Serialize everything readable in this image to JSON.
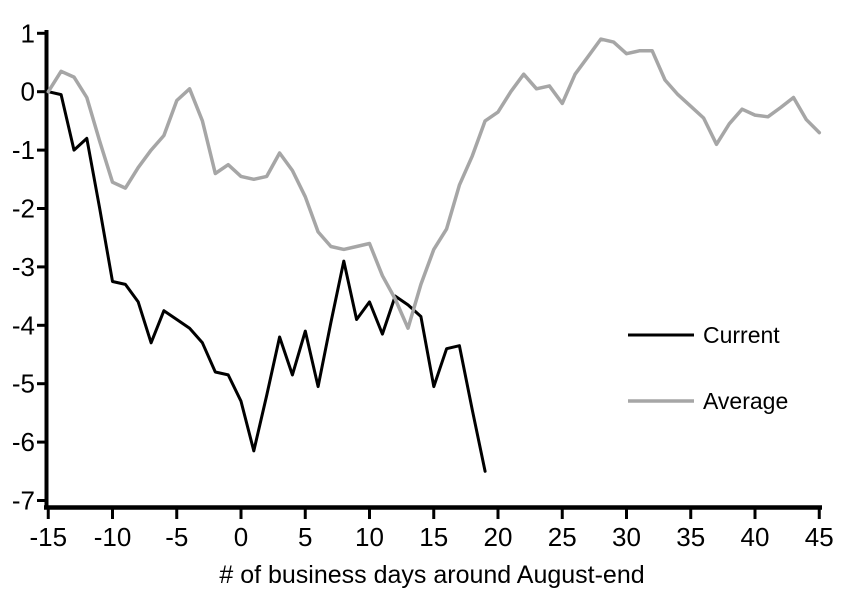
{
  "chart_data": {
    "type": "line",
    "title": "",
    "xlabel": "# of business days around August-end",
    "ylabel": "",
    "xlim": [
      -15,
      45
    ],
    "ylim": [
      -7,
      1
    ],
    "x_ticks": [
      -15,
      -10,
      -5,
      0,
      5,
      10,
      15,
      20,
      25,
      30,
      35,
      40,
      45
    ],
    "y_ticks": [
      1,
      0,
      -1,
      -2,
      -3,
      -4,
      -5,
      -6,
      -7
    ],
    "grid": false,
    "legend_position": "right-middle",
    "axis_color": "#000000",
    "series": [
      {
        "name": "Current",
        "color": "#000000",
        "stroke_width": 3,
        "x": [
          -15,
          -14,
          -13,
          -12,
          -11,
          -10,
          -9,
          -8,
          -7,
          -6,
          -5,
          -4,
          -3,
          -2,
          -1,
          0,
          1,
          2,
          3,
          4,
          5,
          6,
          7,
          8,
          9,
          10,
          11,
          12,
          13,
          14,
          15,
          16,
          17,
          18,
          19
        ],
        "values": [
          0,
          -0.05,
          -1.0,
          -0.8,
          -2.0,
          -3.25,
          -3.3,
          -3.6,
          -4.3,
          -3.75,
          -3.9,
          -4.05,
          -4.3,
          -4.8,
          -4.85,
          -5.3,
          -6.15,
          -5.2,
          -4.2,
          -4.85,
          -4.1,
          -5.05,
          -3.95,
          -2.9,
          -3.9,
          -3.6,
          -4.15,
          -3.5,
          -3.65,
          -3.85,
          -5.05,
          -4.4,
          -4.35,
          -5.45,
          -6.5
        ]
      },
      {
        "name": "Average",
        "color": "#a6a6a6",
        "stroke_width": 3.5,
        "x": [
          -15,
          -14,
          -13,
          -12,
          -11,
          -10,
          -9,
          -8,
          -7,
          -6,
          -5,
          -4,
          -3,
          -2,
          -1,
          0,
          1,
          2,
          3,
          4,
          5,
          6,
          7,
          8,
          9,
          10,
          11,
          12,
          13,
          14,
          15,
          16,
          17,
          18,
          19,
          20,
          21,
          22,
          23,
          24,
          25,
          26,
          27,
          28,
          29,
          30,
          31,
          32,
          33,
          34,
          35,
          36,
          37,
          38,
          39,
          40,
          41,
          42,
          43,
          44,
          45
        ],
        "values": [
          0,
          0.35,
          0.25,
          -0.1,
          -0.85,
          -1.55,
          -1.65,
          -1.3,
          -1.0,
          -0.75,
          -0.15,
          0.05,
          -0.5,
          -1.4,
          -1.25,
          -1.45,
          -1.5,
          -1.45,
          -1.05,
          -1.35,
          -1.8,
          -2.4,
          -2.65,
          -2.7,
          -2.65,
          -2.6,
          -3.15,
          -3.55,
          -4.05,
          -3.3,
          -2.7,
          -2.35,
          -1.6,
          -1.1,
          -0.5,
          -0.35,
          0.0,
          0.3,
          0.05,
          0.1,
          -0.2,
          0.3,
          0.6,
          0.9,
          0.85,
          0.65,
          0.7,
          0.7,
          0.2,
          -0.05,
          -0.25,
          -0.45,
          -0.9,
          -0.55,
          -0.3,
          -0.4,
          -0.43,
          -0.27,
          -0.1,
          -0.48,
          -0.7
        ]
      }
    ]
  }
}
